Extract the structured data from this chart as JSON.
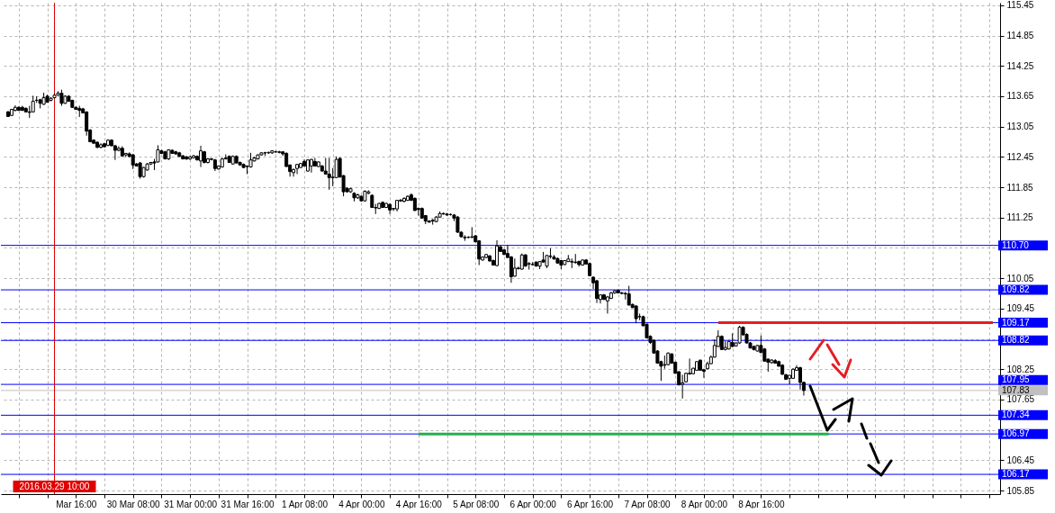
{
  "chart_data": {
    "type": "candlestick",
    "categories": [
      null,
      null,
      null,
      null,
      null,
      null,
      null,
      null,
      null,
      null,
      null,
      null,
      null,
      "2016.03.29 10:00",
      null,
      null,
      null,
      null,
      null,
      "Mar 16:00",
      null,
      null,
      null,
      null,
      null,
      null,
      null,
      null,
      null,
      null,
      null,
      null,
      null,
      null,
      null,
      "30 Mar 08:00",
      null,
      null,
      null,
      null,
      null,
      null,
      null,
      null,
      null,
      null,
      null,
      null,
      null,
      null,
      null,
      "31 Mar 00:00",
      null,
      null,
      null,
      null,
      null,
      null,
      null,
      null,
      null,
      null,
      null,
      null,
      null,
      null,
      null,
      "31 Mar 16:00",
      null,
      null,
      null,
      null,
      null,
      null,
      null,
      null,
      null,
      null,
      null,
      null,
      null,
      null,
      null,
      "1 Apr 08:00",
      null,
      null,
      null,
      null,
      null,
      null,
      null,
      null,
      null,
      null,
      null,
      null,
      null,
      null,
      null,
      "4 Apr 00:00",
      null,
      null,
      null,
      null,
      null,
      null,
      null,
      null,
      null,
      null,
      null,
      null,
      null,
      null,
      null,
      "4 Apr 16:00",
      null,
      null,
      null,
      null,
      null,
      null,
      null,
      null,
      null,
      null,
      null,
      null,
      null,
      null,
      null,
      "5 Apr 08:00",
      null,
      null,
      null,
      null,
      null,
      null,
      null,
      null,
      null,
      null,
      null,
      null,
      null,
      null,
      null,
      "6 Apr 00:00",
      null,
      null,
      null,
      null,
      null,
      null,
      null,
      null,
      null,
      null,
      null,
      null,
      null,
      null,
      null,
      "6 Apr 16:00",
      null,
      null,
      null,
      null,
      null,
      null,
      null,
      null,
      null,
      null,
      null,
      null,
      null,
      null,
      null,
      "7 Apr 08:00",
      null,
      null,
      null,
      null,
      null,
      null,
      null,
      null,
      null,
      null,
      null,
      null,
      null,
      null,
      null,
      "8 Apr 00:00",
      null,
      null,
      null,
      null,
      null,
      null,
      null,
      null,
      null,
      null,
      null,
      null,
      null,
      null,
      null,
      "8 Apr 16:00",
      null,
      null,
      null,
      null,
      null,
      null,
      null,
      null,
      null,
      null,
      null,
      null,
      null,
      null,
      null,
      null,
      null,
      null,
      null,
      null,
      null,
      null,
      null,
      null,
      null,
      null,
      null,
      null,
      null,
      null,
      null,
      null,
      null,
      null,
      null,
      null,
      null,
      null,
      null,
      null,
      null,
      null,
      null,
      null,
      null,
      null,
      null,
      null,
      null,
      null,
      null,
      null,
      null,
      null,
      null,
      null,
      null,
      null,
      null,
      null,
      null,
      null,
      null,
      null,
      null
    ],
    "ohlc": [
      [
        113.34,
        113.36,
        113.24,
        113.25
      ],
      [
        113.27,
        113.4,
        113.26,
        113.39
      ],
      [
        113.37,
        113.47,
        113.35,
        113.43
      ],
      [
        113.43,
        113.45,
        113.36,
        113.37
      ],
      [
        113.43,
        113.46,
        113.36,
        113.37
      ],
      [
        113.41,
        113.43,
        113.33,
        113.34
      ],
      [
        113.34,
        113.46,
        113.22,
        113.33
      ],
      [
        113.34,
        113.66,
        113.33,
        113.55
      ],
      [
        113.57,
        113.65,
        113.52,
        113.57
      ],
      [
        113.58,
        113.6,
        113.41,
        113.51
      ],
      [
        113.49,
        113.72,
        113.48,
        113.62
      ],
      [
        113.65,
        113.68,
        113.53,
        113.53
      ],
      [
        113.57,
        113.63,
        113.55,
        113.61
      ],
      [
        113.62,
        113.7,
        113.61,
        113.67
      ],
      [
        113.67,
        113.75,
        113.66,
        113.71
      ],
      [
        113.71,
        113.78,
        113.46,
        113.51
      ],
      [
        113.51,
        113.67,
        113.5,
        113.65
      ],
      [
        113.65,
        113.67,
        113.54,
        113.55
      ],
      [
        113.57,
        113.58,
        113.42,
        113.43
      ],
      [
        113.43,
        113.45,
        113.38,
        113.39
      ],
      [
        113.41,
        113.46,
        113.24,
        113.37
      ],
      [
        113.4,
        113.42,
        113.31,
        113.32
      ],
      [
        113.34,
        113.35,
        112.87,
        112.96
      ],
      [
        112.98,
        113.0,
        112.74,
        112.75
      ],
      [
        112.78,
        112.8,
        112.71,
        112.72
      ],
      [
        112.74,
        112.76,
        112.62,
        112.64
      ],
      [
        112.64,
        112.72,
        112.62,
        112.69
      ],
      [
        112.71,
        112.73,
        112.64,
        112.65
      ],
      [
        112.68,
        112.8,
        112.66,
        112.78
      ],
      [
        112.78,
        112.8,
        112.66,
        112.67
      ],
      [
        112.67,
        112.69,
        112.39,
        112.58
      ],
      [
        112.58,
        112.66,
        112.56,
        112.62
      ],
      [
        112.62,
        112.66,
        112.45,
        112.47
      ],
      [
        112.49,
        112.52,
        112.45,
        112.52
      ],
      [
        112.51,
        112.54,
        112.44,
        112.46
      ],
      [
        112.49,
        112.51,
        112.21,
        112.29
      ],
      [
        112.31,
        112.33,
        112.26,
        112.27
      ],
      [
        112.33,
        112.35,
        112.02,
        112.06
      ],
      [
        112.06,
        112.25,
        112.04,
        112.24
      ],
      [
        112.19,
        112.33,
        112.18,
        112.31
      ],
      [
        112.31,
        112.35,
        112.29,
        112.34
      ],
      [
        112.35,
        112.41,
        112.19,
        112.33
      ],
      [
        112.35,
        112.68,
        112.34,
        112.59
      ],
      [
        112.57,
        112.59,
        112.51,
        112.52
      ],
      [
        112.55,
        112.57,
        112.4,
        112.41
      ],
      [
        112.41,
        112.6,
        112.39,
        112.59
      ],
      [
        112.58,
        112.6,
        112.51,
        112.52
      ],
      [
        112.55,
        112.57,
        112.49,
        112.51
      ],
      [
        112.53,
        112.55,
        112.45,
        112.46
      ],
      [
        112.47,
        112.49,
        112.4,
        112.41
      ],
      [
        112.45,
        112.47,
        112.39,
        112.41
      ],
      [
        112.41,
        112.47,
        112.39,
        112.45
      ],
      [
        112.43,
        112.49,
        112.42,
        112.47
      ],
      [
        112.46,
        112.48,
        112.38,
        112.39
      ],
      [
        112.37,
        112.67,
        112.25,
        112.57
      ],
      [
        112.55,
        112.57,
        112.32,
        112.34
      ],
      [
        112.34,
        112.43,
        112.32,
        112.41
      ],
      [
        112.41,
        112.43,
        112.38,
        112.4
      ],
      [
        112.39,
        112.41,
        112.17,
        112.22
      ],
      [
        112.21,
        112.28,
        112.2,
        112.27
      ],
      [
        112.25,
        112.43,
        112.24,
        112.41
      ],
      [
        112.41,
        112.5,
        112.4,
        112.43
      ],
      [
        112.46,
        112.48,
        112.33,
        112.34
      ],
      [
        112.31,
        112.48,
        112.3,
        112.46
      ],
      [
        112.46,
        112.48,
        112.32,
        112.33
      ],
      [
        112.34,
        112.36,
        112.28,
        112.29
      ],
      [
        112.3,
        112.32,
        112.23,
        112.24
      ],
      [
        112.27,
        112.28,
        112.11,
        112.26
      ],
      [
        112.25,
        112.53,
        112.24,
        112.39
      ],
      [
        112.37,
        112.45,
        112.36,
        112.43
      ],
      [
        112.41,
        112.5,
        112.4,
        112.49
      ],
      [
        112.49,
        112.54,
        112.48,
        112.53
      ],
      [
        112.53,
        112.55,
        112.47,
        112.53
      ],
      [
        112.53,
        112.55,
        112.51,
        112.54
      ],
      [
        112.53,
        112.58,
        112.51,
        112.57
      ],
      [
        112.55,
        112.57,
        112.53,
        112.55
      ],
      [
        112.55,
        112.57,
        112.52,
        112.54
      ],
      [
        112.55,
        112.56,
        112.47,
        112.51
      ],
      [
        112.52,
        112.54,
        112.25,
        112.26
      ],
      [
        112.29,
        112.3,
        112.06,
        112.16
      ],
      [
        112.14,
        112.22,
        112.06,
        112.2
      ],
      [
        112.22,
        112.31,
        112.11,
        112.3
      ],
      [
        112.24,
        112.33,
        112.23,
        112.32
      ],
      [
        112.36,
        112.4,
        112.26,
        112.27
      ],
      [
        112.17,
        112.4,
        112.16,
        112.39
      ],
      [
        112.27,
        112.41,
        112.14,
        112.4
      ],
      [
        112.36,
        112.43,
        112.26,
        112.27
      ],
      [
        112.26,
        112.36,
        112.25,
        112.35
      ],
      [
        112.27,
        112.29,
        112.16,
        112.17
      ],
      [
        112.17,
        112.43,
        112.1,
        112.11
      ],
      [
        112.11,
        112.43,
        111.8,
        112.04
      ],
      [
        112.04,
        112.23,
        111.87,
        112.05
      ],
      [
        112.04,
        112.46,
        112.03,
        112.4
      ],
      [
        112.42,
        112.44,
        112.05,
        112.05
      ],
      [
        112.08,
        112.09,
        111.67,
        111.76
      ],
      [
        111.83,
        111.85,
        111.75,
        111.76
      ],
      [
        111.76,
        111.84,
        111.74,
        111.82
      ],
      [
        111.73,
        111.75,
        111.57,
        111.64
      ],
      [
        111.64,
        111.72,
        111.62,
        111.7
      ],
      [
        111.67,
        111.69,
        111.57,
        111.58
      ],
      [
        111.58,
        111.79,
        111.57,
        111.77
      ],
      [
        111.73,
        111.79,
        111.71,
        111.76
      ],
      [
        111.69,
        111.71,
        111.44,
        111.45
      ],
      [
        111.45,
        111.52,
        111.32,
        111.44
      ],
      [
        111.43,
        111.54,
        111.42,
        111.53
      ],
      [
        111.55,
        111.57,
        111.44,
        111.45
      ],
      [
        111.45,
        111.54,
        111.44,
        111.53
      ],
      [
        111.51,
        111.53,
        111.32,
        111.4
      ],
      [
        111.42,
        111.44,
        111.38,
        111.43
      ],
      [
        111.42,
        111.6,
        111.37,
        111.59
      ],
      [
        111.59,
        111.62,
        111.56,
        111.58
      ],
      [
        111.57,
        111.65,
        111.55,
        111.63
      ],
      [
        111.59,
        111.69,
        111.58,
        111.67
      ],
      [
        111.7,
        111.73,
        111.58,
        111.59
      ],
      [
        111.63,
        111.65,
        111.38,
        111.39
      ],
      [
        111.43,
        111.45,
        111.29,
        111.41
      ],
      [
        111.43,
        111.45,
        111.23,
        111.24
      ],
      [
        111.29,
        111.3,
        111.12,
        111.18
      ],
      [
        111.18,
        111.2,
        111.15,
        111.16
      ],
      [
        111.18,
        111.22,
        111.11,
        111.2
      ],
      [
        111.17,
        111.28,
        111.16,
        111.26
      ],
      [
        111.26,
        111.37,
        111.25,
        111.33
      ],
      [
        111.33,
        111.35,
        111.31,
        111.32
      ],
      [
        111.32,
        111.34,
        111.29,
        111.3
      ],
      [
        111.31,
        111.33,
        111.29,
        111.31
      ],
      [
        111.3,
        111.32,
        111.18,
        111.24
      ],
      [
        111.26,
        111.28,
        110.95,
        110.96
      ],
      [
        110.96,
        110.98,
        110.86,
        110.87
      ],
      [
        110.86,
        110.9,
        110.79,
        110.85
      ],
      [
        110.86,
        110.88,
        110.84,
        110.86
      ],
      [
        110.86,
        111.06,
        110.84,
        110.87
      ],
      [
        110.89,
        110.9,
        110.76,
        110.77
      ],
      [
        110.79,
        110.8,
        110.31,
        110.43
      ],
      [
        110.41,
        110.48,
        110.4,
        110.47
      ],
      [
        110.46,
        110.53,
        110.45,
        110.52
      ],
      [
        110.49,
        110.51,
        110.38,
        110.39
      ],
      [
        110.4,
        110.42,
        110.3,
        110.31
      ],
      [
        110.3,
        110.8,
        110.29,
        110.69
      ],
      [
        110.67,
        110.7,
        110.57,
        110.58
      ],
      [
        110.61,
        110.63,
        110.51,
        110.52
      ],
      [
        110.54,
        110.71,
        110.45,
        110.46
      ],
      [
        110.47,
        110.49,
        109.96,
        110.08
      ],
      [
        110.09,
        110.44,
        110.08,
        110.25
      ],
      [
        110.25,
        110.28,
        110.22,
        110.24
      ],
      [
        110.23,
        110.54,
        110.22,
        110.51
      ],
      [
        110.51,
        110.53,
        110.28,
        110.29
      ],
      [
        110.33,
        110.37,
        110.22,
        110.34
      ],
      [
        110.32,
        110.37,
        110.3,
        110.32
      ],
      [
        110.37,
        110.38,
        110.28,
        110.29
      ],
      [
        110.29,
        110.39,
        110.23,
        110.38
      ],
      [
        110.41,
        110.57,
        110.36,
        110.37
      ],
      [
        110.29,
        110.51,
        110.25,
        110.5
      ],
      [
        110.48,
        110.64,
        110.44,
        110.49
      ],
      [
        110.47,
        110.51,
        110.42,
        110.43
      ],
      [
        110.44,
        110.46,
        110.34,
        110.35
      ],
      [
        110.4,
        110.41,
        110.23,
        110.31
      ],
      [
        110.32,
        110.41,
        110.31,
        110.4
      ],
      [
        110.38,
        110.51,
        110.37,
        110.43
      ],
      [
        110.38,
        110.44,
        110.25,
        110.37
      ],
      [
        110.37,
        110.53,
        110.34,
        110.36
      ],
      [
        110.38,
        110.4,
        110.28,
        110.32
      ],
      [
        110.31,
        110.42,
        110.3,
        110.41
      ],
      [
        110.41,
        110.43,
        110.32,
        110.33
      ],
      [
        110.34,
        110.36,
        110.09,
        110.1
      ],
      [
        110.07,
        110.09,
        109.84,
        109.96
      ],
      [
        110.0,
        110.02,
        109.56,
        109.65
      ],
      [
        109.63,
        109.73,
        109.55,
        109.72
      ],
      [
        109.72,
        109.74,
        109.62,
        109.63
      ],
      [
        109.6,
        109.7,
        109.35,
        109.68
      ],
      [
        109.65,
        109.78,
        109.64,
        109.76
      ],
      [
        109.76,
        109.81,
        109.74,
        109.8
      ],
      [
        109.81,
        109.83,
        109.75,
        109.76
      ],
      [
        109.76,
        109.78,
        109.73,
        109.75
      ],
      [
        109.75,
        109.78,
        109.63,
        109.74
      ],
      [
        109.74,
        109.9,
        109.51,
        109.52
      ],
      [
        109.53,
        109.55,
        109.46,
        109.47
      ],
      [
        109.5,
        109.52,
        109.16,
        109.25
      ],
      [
        109.29,
        109.35,
        109.22,
        109.29
      ],
      [
        109.29,
        109.31,
        109.1,
        109.11
      ],
      [
        109.14,
        109.15,
        108.86,
        108.87
      ],
      [
        108.9,
        108.92,
        108.75,
        108.78
      ],
      [
        108.82,
        108.84,
        108.56,
        108.57
      ],
      [
        108.61,
        108.63,
        108.36,
        108.37
      ],
      [
        108.4,
        108.42,
        108.02,
        108.31
      ],
      [
        108.34,
        108.52,
        108.26,
        108.33
      ],
      [
        108.34,
        108.58,
        108.33,
        108.57
      ],
      [
        108.55,
        108.57,
        108.36,
        108.37
      ],
      [
        108.39,
        108.4,
        108.16,
        108.17
      ],
      [
        108.2,
        108.21,
        107.93,
        107.94
      ],
      [
        107.95,
        108.14,
        107.67,
        107.98
      ],
      [
        108.0,
        108.18,
        107.99,
        108.17
      ],
      [
        108.17,
        108.46,
        108.14,
        108.16
      ],
      [
        108.16,
        108.28,
        108.15,
        108.27
      ],
      [
        108.23,
        108.41,
        108.22,
        108.4
      ],
      [
        108.43,
        108.44,
        108.22,
        108.23
      ],
      [
        108.24,
        108.26,
        108.08,
        108.21
      ],
      [
        108.26,
        108.4,
        108.25,
        108.36
      ],
      [
        108.36,
        108.52,
        108.35,
        108.49
      ],
      [
        108.49,
        108.84,
        108.48,
        108.72
      ],
      [
        108.7,
        109.02,
        108.69,
        108.9
      ],
      [
        108.9,
        108.92,
        108.63,
        108.64
      ],
      [
        108.64,
        108.81,
        108.62,
        108.68
      ],
      [
        108.65,
        108.81,
        108.64,
        108.8
      ],
      [
        108.78,
        108.96,
        108.69,
        108.7
      ],
      [
        108.71,
        108.78,
        108.7,
        108.77
      ],
      [
        108.77,
        109.11,
        108.75,
        109.08
      ],
      [
        109.08,
        109.1,
        108.92,
        108.93
      ],
      [
        108.94,
        108.96,
        108.76,
        108.77
      ],
      [
        108.77,
        108.79,
        108.66,
        108.67
      ],
      [
        108.7,
        108.72,
        108.62,
        108.64
      ],
      [
        108.61,
        108.73,
        108.6,
        108.72
      ],
      [
        108.72,
        108.92,
        108.57,
        108.58
      ],
      [
        108.65,
        108.67,
        108.4,
        108.41
      ],
      [
        108.45,
        108.46,
        108.2,
        108.39
      ],
      [
        108.38,
        108.45,
        108.36,
        108.43
      ],
      [
        108.42,
        108.45,
        108.36,
        108.37
      ],
      [
        108.4,
        108.42,
        108.3,
        108.31
      ],
      [
        108.33,
        108.35,
        108.14,
        108.15
      ],
      [
        108.14,
        108.16,
        108.04,
        108.05
      ],
      [
        108.07,
        108.14,
        107.95,
        108.13
      ],
      [
        108.07,
        108.27,
        108.06,
        108.25
      ],
      [
        108.23,
        108.33,
        108.22,
        108.28
      ],
      [
        108.28,
        108.3,
        107.85,
        107.99
      ],
      [
        107.99,
        108.0,
        107.73,
        107.83
      ],
      null,
      null,
      null,
      null,
      null,
      null,
      null,
      null,
      null,
      null,
      null,
      null,
      null,
      null,
      null,
      null,
      null,
      null,
      null,
      null,
      null,
      null,
      null,
      null,
      null,
      null,
      null,
      null,
      null,
      null,
      null,
      null,
      null,
      null,
      null,
      null,
      null,
      null,
      null,
      null,
      null,
      null,
      null,
      null,
      null,
      null,
      null,
      null,
      null,
      null,
      null,
      null,
      null
    ],
    "series": [
      {
        "type": "line",
        "color": "#e41e25",
        "values": [
          null,
          null,
          null,
          null,
          null,
          null,
          null,
          null,
          null,
          null,
          null,
          null,
          null,
          null,
          null,
          null,
          null,
          null,
          null,
          null,
          null,
          null,
          null,
          null,
          null,
          null,
          null,
          null,
          null,
          null,
          null,
          null,
          null,
          null,
          null,
          null,
          null,
          null,
          null,
          null,
          null,
          null,
          null,
          null,
          null,
          null,
          null,
          null,
          null,
          null,
          null,
          null,
          null,
          null,
          null,
          null,
          null,
          null,
          null,
          null,
          null,
          null,
          null,
          null,
          null,
          null,
          null,
          null,
          null,
          null,
          null,
          null,
          null,
          null,
          null,
          null,
          null,
          null,
          null,
          null,
          null,
          null,
          null,
          null,
          null,
          null,
          null,
          null,
          null,
          null,
          null,
          null,
          null,
          null,
          null,
          null,
          null,
          null,
          null,
          null,
          null,
          null,
          null,
          null,
          null,
          null,
          null,
          null,
          null,
          null,
          null,
          null,
          null,
          null,
          null,
          null,
          null,
          null,
          null,
          null,
          null,
          null,
          null,
          null,
          null,
          null,
          null,
          null,
          null,
          null,
          null,
          null,
          null,
          null,
          null,
          null,
          null,
          null,
          null,
          null,
          null,
          null,
          null,
          null,
          null,
          null,
          null,
          null,
          null,
          null,
          null,
          null,
          null,
          null,
          null,
          null,
          null,
          null,
          null,
          null,
          null,
          null,
          null,
          null,
          null,
          null,
          null,
          null,
          null,
          null,
          null,
          null,
          null,
          null,
          null,
          null,
          null,
          null,
          null,
          null,
          null,
          null,
          null,
          null,
          null,
          null,
          null,
          null,
          null,
          null,
          null,
          null,
          null,
          null,
          null,
          null,
          null,
          null,
          null,
          109.17,
          109.17,
          109.17,
          109.17,
          109.17,
          109.17,
          109.17,
          109.17,
          109.17,
          109.17,
          109.17,
          109.17,
          109.17,
          109.17,
          109.17,
          109.17,
          109.17,
          109.17,
          109.17,
          109.17,
          109.17,
          109.17,
          109.17,
          109.17,
          109.17,
          109.17,
          109.17,
          109.17,
          109.17,
          109.17,
          109.17,
          109.17,
          109.17,
          109.17,
          109.17,
          109.17,
          109.17,
          109.17,
          109.17,
          109.17,
          109.17,
          109.17,
          109.17,
          109.17,
          109.17,
          109.17,
          109.17,
          109.17,
          109.17,
          109.17,
          109.17,
          109.17,
          109.17,
          109.17,
          109.17,
          109.17,
          109.17,
          109.17,
          109.17,
          109.17,
          109.17,
          109.17,
          109.17,
          109.17,
          109.17,
          109.17,
          109.17,
          109.17,
          109.17,
          109.17,
          109.17,
          109.17,
          109.17,
          109.17,
          109.17,
          109.17,
          109.17,
          109.17
        ]
      },
      {
        "type": "line",
        "color": "#22b14c",
        "values": [
          null,
          null,
          null,
          null,
          null,
          null,
          null,
          null,
          null,
          null,
          null,
          null,
          null,
          null,
          null,
          null,
          null,
          null,
          null,
          null,
          null,
          null,
          null,
          null,
          null,
          null,
          null,
          null,
          null,
          null,
          null,
          null,
          null,
          null,
          null,
          null,
          null,
          null,
          null,
          null,
          null,
          null,
          null,
          null,
          null,
          null,
          null,
          null,
          null,
          null,
          null,
          null,
          null,
          null,
          null,
          null,
          null,
          null,
          null,
          null,
          null,
          null,
          null,
          null,
          null,
          null,
          null,
          null,
          null,
          null,
          null,
          null,
          null,
          null,
          null,
          null,
          null,
          null,
          null,
          null,
          null,
          null,
          null,
          null,
          null,
          null,
          null,
          null,
          null,
          null,
          null,
          null,
          null,
          null,
          null,
          null,
          null,
          null,
          null,
          null,
          null,
          null,
          null,
          null,
          null,
          null,
          null,
          null,
          null,
          null,
          null,
          null,
          null,
          null,
          null,
          106.97,
          106.97,
          106.97,
          106.97,
          106.97,
          106.97,
          106.97,
          106.97,
          106.97,
          106.97,
          106.97,
          106.97,
          106.97,
          106.97,
          106.97,
          106.97,
          106.97,
          106.97,
          106.97,
          106.97,
          106.97,
          106.97,
          106.97,
          106.97,
          106.97,
          106.97,
          106.97,
          106.97,
          106.97,
          106.97,
          106.97,
          106.97,
          106.97,
          106.97,
          106.97,
          106.97,
          106.97,
          106.97,
          106.97,
          106.97,
          106.97,
          106.97,
          106.97,
          106.97,
          106.97,
          106.97,
          106.97,
          106.97,
          106.97,
          106.97,
          106.97,
          106.97,
          106.97,
          106.97,
          106.97,
          106.97,
          106.97,
          106.97,
          106.97,
          106.97,
          106.97,
          106.97,
          106.97,
          106.97,
          106.97,
          106.97,
          106.97,
          106.97,
          106.97,
          106.97,
          106.97,
          106.97,
          106.97,
          106.97,
          106.97,
          106.97,
          106.97,
          106.97,
          106.97,
          106.97,
          106.97,
          106.97,
          106.97,
          106.97,
          106.97,
          106.97,
          106.97,
          106.97,
          106.97,
          106.97,
          106.97,
          106.97,
          106.97,
          106.97,
          106.97,
          106.97,
          106.97,
          106.97,
          106.97,
          106.97,
          106.97,
          106.97,
          106.97,
          106.97,
          106.97,
          106.97,
          106.97,
          106.97,
          106.97,
          106.97,
          106.97,
          106.97,
          106.97,
          106.97,
          106.97,
          106.97,
          null,
          null,
          null,
          null,
          null,
          null,
          null,
          null,
          null,
          null,
          null,
          null,
          null,
          null,
          null,
          null,
          null,
          null,
          null,
          null,
          null,
          null,
          null,
          null,
          null,
          null,
          null,
          null,
          null,
          null,
          null,
          null,
          null,
          null,
          null,
          null,
          null,
          null,
          null,
          null,
          null,
          null,
          null,
          null,
          null,
          null
        ]
      }
    ],
    "ylim": [
      105.78,
      115.5
    ],
    "yticks": [
      115.45,
      114.85,
      114.25,
      113.65,
      113.05,
      112.45,
      111.85,
      111.25,
      {
        "value": 110.65,
        "label": null
      },
      110.05,
      109.45,
      {
        "value": 108.85,
        "label": null
      },
      108.25,
      107.65,
      {
        "value": 107.05,
        "label": null
      },
      106.45,
      105.85
    ],
    "grid": true,
    "ref_lines": [
      {
        "axis": "y",
        "value": 110.7,
        "label": "110.70",
        "color": "#0000ff"
      },
      {
        "axis": "y",
        "value": 109.82,
        "label": "109.82",
        "color": "#0000ff"
      },
      {
        "axis": "y",
        "value": 109.17,
        "label": "109.17",
        "color": "#0000ff"
      },
      {
        "axis": "y",
        "value": 108.82,
        "label": "108.82",
        "color": "#0000ff"
      },
      {
        "axis": "y",
        "value": 107.95,
        "label": "107.95",
        "color": "#0000ff"
      },
      {
        "axis": "y",
        "value": 107.83,
        "label": "107.83",
        "color": "#c0c0c0"
      },
      {
        "axis": "y",
        "value": 107.34,
        "label": "107.34",
        "color": "#0000ff"
      },
      {
        "axis": "y",
        "value": 106.97,
        "label": "106.97",
        "color": "#0000ff"
      },
      {
        "axis": "y",
        "value": 106.17,
        "label": "106.17",
        "color": "#0000ff"
      },
      {
        "axis": "x",
        "value": "2016.03.29 10:00",
        "color": "#e00000"
      }
    ]
  }
}
